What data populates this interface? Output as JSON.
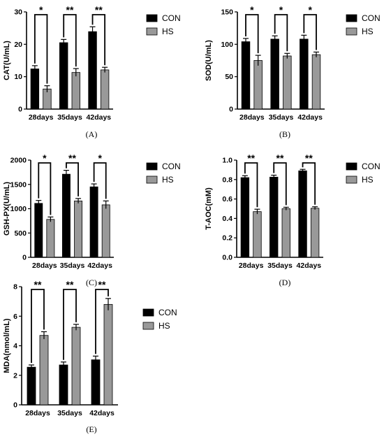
{
  "chart_data": [
    {
      "type": "bar",
      "panel": "(A)",
      "ylabel": "CAT(U/mL)",
      "ylim": [
        0,
        30
      ],
      "yticks": [
        0,
        10,
        20,
        30
      ],
      "categories": [
        "28days",
        "35days",
        "42days"
      ],
      "series": [
        {
          "name": "CON",
          "color": "#000000",
          "values": [
            12.4,
            20.5,
            23.9
          ],
          "errors": [
            1.0,
            1.0,
            1.5
          ]
        },
        {
          "name": "HS",
          "color": "#999999",
          "values": [
            6.2,
            11.3,
            12.1
          ],
          "errors": [
            1.0,
            1.2,
            0.8
          ]
        }
      ],
      "significance": [
        "*",
        "**",
        "**"
      ],
      "legend": "top-right",
      "grid": false
    },
    {
      "type": "bar",
      "panel": "(B)",
      "ylabel": "SOD(U/mL)",
      "ylim": [
        0,
        150
      ],
      "yticks": [
        0,
        50,
        100,
        150
      ],
      "categories": [
        "28days",
        "35days",
        "42days"
      ],
      "series": [
        {
          "name": "CON",
          "color": "#000000",
          "values": [
            104,
            108,
            108
          ],
          "errors": [
            5,
            5,
            6
          ]
        },
        {
          "name": "HS",
          "color": "#999999",
          "values": [
            75,
            82,
            84
          ],
          "errors": [
            8,
            4,
            4
          ]
        }
      ],
      "significance": [
        "*",
        "*",
        "*"
      ],
      "legend": "top-right",
      "grid": false
    },
    {
      "type": "bar",
      "panel": "(C)",
      "ylabel": "GSH-PX(U/mL)",
      "ylim": [
        0,
        2000
      ],
      "yticks": [
        0,
        500,
        1000,
        1500,
        2000
      ],
      "categories": [
        "28days",
        "35days",
        "42days"
      ],
      "series": [
        {
          "name": "CON",
          "color": "#000000",
          "values": [
            1110,
            1710,
            1450
          ],
          "errors": [
            60,
            80,
            60
          ]
        },
        {
          "name": "HS",
          "color": "#999999",
          "values": [
            780,
            1160,
            1080
          ],
          "errors": [
            50,
            50,
            80
          ]
        }
      ],
      "significance": [
        "*",
        "**",
        "*"
      ],
      "legend": "top-right",
      "grid": false
    },
    {
      "type": "bar",
      "panel": "(D)",
      "ylabel": "T-AOC(mM)",
      "ylim": [
        0,
        1.0
      ],
      "yticks": [
        0.0,
        0.2,
        0.4,
        0.6,
        0.8,
        1.0
      ],
      "ytick_labels": [
        "0.0",
        "0.2",
        "0.4",
        "0.6",
        "0.8",
        "1.0"
      ],
      "categories": [
        "28days",
        "35days",
        "42days"
      ],
      "series": [
        {
          "name": "CON",
          "color": "#000000",
          "values": [
            0.82,
            0.825,
            0.89
          ],
          "errors": [
            0.02,
            0.02,
            0.015
          ]
        },
        {
          "name": "HS",
          "color": "#999999",
          "values": [
            0.47,
            0.5,
            0.505
          ],
          "errors": [
            0.025,
            0.015,
            0.015
          ]
        }
      ],
      "significance": [
        "**",
        "**",
        "**"
      ],
      "legend": "top-right",
      "grid": false
    },
    {
      "type": "bar",
      "panel": "(E)",
      "ylabel": "MDA(nmol/mL)",
      "ylim": [
        0,
        8
      ],
      "yticks": [
        0,
        2,
        4,
        6,
        8
      ],
      "categories": [
        "28days",
        "35days",
        "42days"
      ],
      "series": [
        {
          "name": "CON",
          "color": "#000000",
          "values": [
            2.55,
            2.7,
            3.05
          ],
          "errors": [
            0.15,
            0.2,
            0.25
          ]
        },
        {
          "name": "HS",
          "color": "#999999",
          "values": [
            4.7,
            5.25,
            6.8
          ],
          "errors": [
            0.25,
            0.2,
            0.4
          ]
        }
      ],
      "significance": [
        "**",
        "**",
        "**"
      ],
      "legend": "top-right",
      "grid": false
    }
  ]
}
